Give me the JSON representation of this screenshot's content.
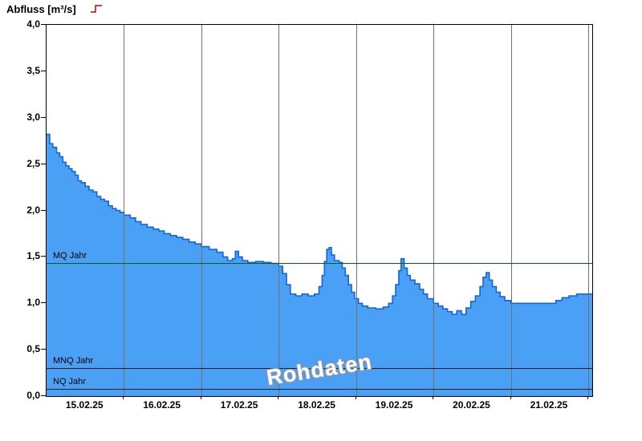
{
  "title": "Abfluss [m³/s]",
  "watermark": "Rohdaten",
  "chart_data": {
    "type": "area",
    "title": "Abfluss [m³/s]",
    "ylabel": "Abfluss [m³/s]",
    "xlabel": "",
    "ylim": [
      0,
      4
    ],
    "x_days": 7.05,
    "x_axis_start": "15.02.25 00:00",
    "y_ticks": [
      {
        "v": 0.0,
        "label": "0,0"
      },
      {
        "v": 0.5,
        "label": "0,5"
      },
      {
        "v": 1.0,
        "label": "1,0"
      },
      {
        "v": 1.5,
        "label": "1,5"
      },
      {
        "v": 2.0,
        "label": "2,0"
      },
      {
        "v": 2.5,
        "label": "2,5"
      },
      {
        "v": 3.0,
        "label": "3,0"
      },
      {
        "v": 3.5,
        "label": "3,5"
      },
      {
        "v": 4.0,
        "label": "4,0"
      }
    ],
    "x_labels": [
      {
        "day": 0.5,
        "label": "15.02.25"
      },
      {
        "day": 1.5,
        "label": "16.02.25"
      },
      {
        "day": 2.5,
        "label": "17.02.25"
      },
      {
        "day": 3.5,
        "label": "18.02.25"
      },
      {
        "day": 4.5,
        "label": "19.02.25"
      },
      {
        "day": 5.5,
        "label": "20.02.25"
      },
      {
        "day": 6.5,
        "label": "21.02.25"
      }
    ],
    "day_gridlines": [
      1,
      2,
      3,
      4,
      5,
      6,
      7
    ],
    "ref_lines": [
      {
        "label": "MQ Jahr",
        "value": 1.43,
        "color": "#006600"
      },
      {
        "label": "MNQ Jahr",
        "value": 0.3,
        "color": "#1a1a1a"
      },
      {
        "label": "NQ Jahr",
        "value": 0.08,
        "color": "#1a1a1a"
      }
    ],
    "series": [
      {
        "name": "Rohdaten",
        "step": "after",
        "points": [
          [
            0.0,
            2.82
          ],
          [
            0.04,
            2.72
          ],
          [
            0.08,
            2.68
          ],
          [
            0.13,
            2.62
          ],
          [
            0.17,
            2.58
          ],
          [
            0.21,
            2.52
          ],
          [
            0.25,
            2.48
          ],
          [
            0.29,
            2.45
          ],
          [
            0.33,
            2.42
          ],
          [
            0.37,
            2.38
          ],
          [
            0.41,
            2.32
          ],
          [
            0.45,
            2.3
          ],
          [
            0.5,
            2.26
          ],
          [
            0.55,
            2.22
          ],
          [
            0.6,
            2.2
          ],
          [
            0.65,
            2.15
          ],
          [
            0.7,
            2.12
          ],
          [
            0.75,
            2.1
          ],
          [
            0.8,
            2.05
          ],
          [
            0.85,
            2.02
          ],
          [
            0.9,
            2.0
          ],
          [
            0.95,
            1.98
          ],
          [
            1.0,
            1.95
          ],
          [
            1.08,
            1.92
          ],
          [
            1.15,
            1.88
          ],
          [
            1.22,
            1.85
          ],
          [
            1.3,
            1.82
          ],
          [
            1.38,
            1.8
          ],
          [
            1.45,
            1.78
          ],
          [
            1.52,
            1.75
          ],
          [
            1.6,
            1.73
          ],
          [
            1.68,
            1.71
          ],
          [
            1.76,
            1.69
          ],
          [
            1.84,
            1.66
          ],
          [
            1.92,
            1.64
          ],
          [
            2.0,
            1.61
          ],
          [
            2.1,
            1.58
          ],
          [
            2.2,
            1.55
          ],
          [
            2.28,
            1.5
          ],
          [
            2.34,
            1.46
          ],
          [
            2.4,
            1.48
          ],
          [
            2.44,
            1.56
          ],
          [
            2.48,
            1.5
          ],
          [
            2.53,
            1.46
          ],
          [
            2.6,
            1.44
          ],
          [
            2.7,
            1.45
          ],
          [
            2.8,
            1.44
          ],
          [
            2.9,
            1.43
          ],
          [
            3.0,
            1.4
          ],
          [
            3.05,
            1.32
          ],
          [
            3.1,
            1.2
          ],
          [
            3.15,
            1.1
          ],
          [
            3.22,
            1.08
          ],
          [
            3.3,
            1.1
          ],
          [
            3.38,
            1.08
          ],
          [
            3.46,
            1.1
          ],
          [
            3.52,
            1.18
          ],
          [
            3.56,
            1.3
          ],
          [
            3.59,
            1.45
          ],
          [
            3.62,
            1.58
          ],
          [
            3.65,
            1.6
          ],
          [
            3.68,
            1.52
          ],
          [
            3.72,
            1.46
          ],
          [
            3.78,
            1.44
          ],
          [
            3.82,
            1.38
          ],
          [
            3.86,
            1.3
          ],
          [
            3.9,
            1.2
          ],
          [
            3.94,
            1.12
          ],
          [
            3.98,
            1.05
          ],
          [
            4.03,
            1.0
          ],
          [
            4.08,
            0.97
          ],
          [
            4.15,
            0.95
          ],
          [
            4.25,
            0.94
          ],
          [
            4.35,
            0.96
          ],
          [
            4.42,
            1.0
          ],
          [
            4.47,
            1.08
          ],
          [
            4.51,
            1.2
          ],
          [
            4.55,
            1.35
          ],
          [
            4.58,
            1.48
          ],
          [
            4.62,
            1.38
          ],
          [
            4.66,
            1.3
          ],
          [
            4.7,
            1.25
          ],
          [
            4.76,
            1.21
          ],
          [
            4.82,
            1.15
          ],
          [
            4.87,
            1.1
          ],
          [
            4.92,
            1.05
          ],
          [
            5.0,
            1.0
          ],
          [
            5.06,
            0.97
          ],
          [
            5.12,
            0.94
          ],
          [
            5.18,
            0.91
          ],
          [
            5.24,
            0.88
          ],
          [
            5.3,
            0.92
          ],
          [
            5.36,
            0.88
          ],
          [
            5.42,
            0.95
          ],
          [
            5.48,
            1.02
          ],
          [
            5.54,
            1.08
          ],
          [
            5.6,
            1.18
          ],
          [
            5.64,
            1.28
          ],
          [
            5.68,
            1.33
          ],
          [
            5.72,
            1.25
          ],
          [
            5.76,
            1.18
          ],
          [
            5.81,
            1.12
          ],
          [
            5.86,
            1.07
          ],
          [
            5.92,
            1.03
          ],
          [
            6.0,
            1.0
          ],
          [
            6.15,
            1.0
          ],
          [
            6.3,
            1.0
          ],
          [
            6.45,
            1.0
          ],
          [
            6.58,
            1.03
          ],
          [
            6.66,
            1.06
          ],
          [
            6.75,
            1.08
          ],
          [
            6.85,
            1.1
          ],
          [
            7.05,
            1.1
          ]
        ]
      }
    ],
    "colors": {
      "fill": "#4aa0f5",
      "stroke": "#1565d8",
      "gridline": "#707070",
      "axis": "#000000",
      "legend_mark": "#cc0000",
      "mq_line": "#006600",
      "nq_line": "#1a1a1a"
    }
  }
}
